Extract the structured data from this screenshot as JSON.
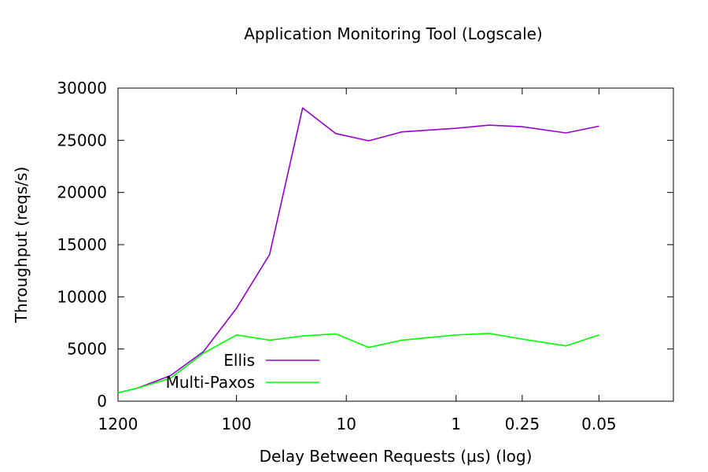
{
  "chart_data": {
    "type": "line",
    "title": "Application Monitoring Tool (Logscale)",
    "xlabel": "Delay Between Requests (µs) (log)",
    "ylabel": "Throughput (reqs/s)",
    "x_scale": "log",
    "x_direction": "decreasing",
    "xlim": [
      1200,
      0.0105
    ],
    "ylim": [
      0,
      30000
    ],
    "x_ticks": [
      {
        "value": 1200,
        "label": "1200"
      },
      {
        "value": 100,
        "label": "100"
      },
      {
        "value": 10,
        "label": "10"
      },
      {
        "value": 1,
        "label": "1"
      },
      {
        "value": 0.25,
        "label": "0.25"
      },
      {
        "value": 0.05,
        "label": "0.05"
      }
    ],
    "y_ticks": [
      0,
      5000,
      10000,
      15000,
      20000,
      25000,
      30000
    ],
    "legend_position": "bottom-left",
    "grid": false,
    "x": [
      1200,
      800,
      400,
      200,
      100,
      50,
      25,
      12.5,
      6.25,
      3.125,
      1,
      0.5,
      0.25,
      0.1,
      0.05
    ],
    "series": [
      {
        "name": "Ellis",
        "color": "#9400d3",
        "values": [
          800,
          1250,
          2450,
          4750,
          8900,
          14050,
          28100,
          25650,
          24950,
          25800,
          26150,
          26450,
          26300,
          25700,
          26350
        ]
      },
      {
        "name": "Multi-Paxos",
        "color": "#00ff00",
        "values": [
          800,
          1250,
          2200,
          4600,
          6350,
          5850,
          6250,
          6450,
          5150,
          5850,
          6350,
          6500,
          5950,
          5300,
          6350
        ]
      }
    ]
  }
}
